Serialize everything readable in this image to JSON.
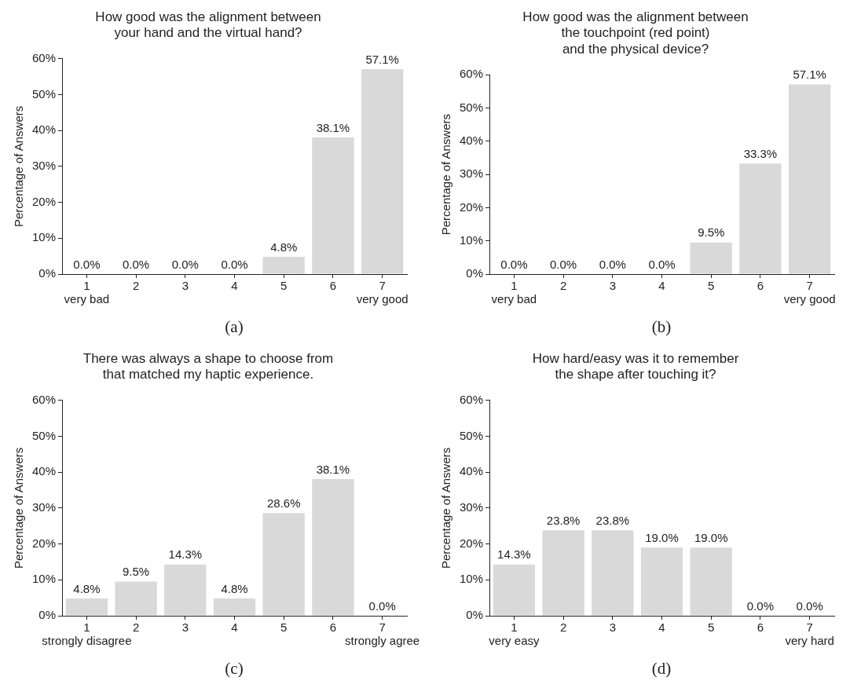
{
  "chart_data": [
    {
      "type": "bar",
      "title": "How good was the alignment between\nyour hand and the virtual hand?",
      "ylabel": "Percentage of Answers",
      "categories": [
        "1",
        "2",
        "3",
        "4",
        "5",
        "6",
        "7"
      ],
      "values": [
        0,
        0,
        0,
        0,
        4.8,
        38.1,
        57.1
      ],
      "value_labels": [
        "0.0%",
        "0.0%",
        "0.0%",
        "0.0%",
        "4.8%",
        "38.1%",
        "57.1%"
      ],
      "color": "#d9d9d9",
      "ylim": [
        0,
        60
      ],
      "yticks": [
        {
          "value": 0,
          "label": "0%"
        },
        {
          "value": 10,
          "label": "10%"
        },
        {
          "value": 20,
          "label": "20%"
        },
        {
          "value": 30,
          "label": "30%"
        },
        {
          "value": 40,
          "label": "40%"
        },
        {
          "value": 50,
          "label": "50%"
        },
        {
          "value": 60,
          "label": "60%"
        }
      ],
      "annotations": [
        "very bad",
        "very good",
        "(a)"
      ]
    },
    {
      "type": "bar",
      "title": "How good was the alignment between\nthe touchpoint (red point)\nand the physical device?",
      "ylabel": "Percentage of Answers",
      "categories": [
        "1",
        "2",
        "3",
        "4",
        "5",
        "6",
        "7"
      ],
      "values": [
        0,
        0,
        0,
        0,
        9.5,
        33.3,
        57.1
      ],
      "value_labels": [
        "0.0%",
        "0.0%",
        "0.0%",
        "0.0%",
        "9.5%",
        "33.3%",
        "57.1%"
      ],
      "color": "#d9d9d9",
      "ylim": [
        0,
        60
      ],
      "yticks": [
        {
          "value": 0,
          "label": "0%"
        },
        {
          "value": 10,
          "label": "10%"
        },
        {
          "value": 20,
          "label": "20%"
        },
        {
          "value": 30,
          "label": "30%"
        },
        {
          "value": 40,
          "label": "40%"
        },
        {
          "value": 50,
          "label": "50%"
        },
        {
          "value": 60,
          "label": "60%"
        }
      ],
      "annotations": [
        "very bad",
        "very good",
        "(b)"
      ]
    },
    {
      "type": "bar",
      "title": "There was always a shape to choose from\nthat matched my haptic experience.",
      "ylabel": "Percentage of Answers",
      "categories": [
        "1",
        "2",
        "3",
        "4",
        "5",
        "6",
        "7"
      ],
      "values": [
        4.8,
        9.5,
        14.3,
        4.8,
        28.6,
        38.1,
        0
      ],
      "value_labels": [
        "4.8%",
        "9.5%",
        "14.3%",
        "4.8%",
        "28.6%",
        "38.1%",
        "0.0%"
      ],
      "color": "#d9d9d9",
      "ylim": [
        0,
        60
      ],
      "yticks": [
        {
          "value": 0,
          "label": "0%"
        },
        {
          "value": 10,
          "label": "10%"
        },
        {
          "value": 20,
          "label": "20%"
        },
        {
          "value": 30,
          "label": "30%"
        },
        {
          "value": 40,
          "label": "40%"
        },
        {
          "value": 50,
          "label": "50%"
        },
        {
          "value": 60,
          "label": "60%"
        }
      ],
      "annotations": [
        "strongly disagree",
        "strongly agree",
        "(c)"
      ]
    },
    {
      "type": "bar",
      "title": "How hard/easy was it to remember\nthe shape after touching it?",
      "ylabel": "Percentage of Answers",
      "categories": [
        "1",
        "2",
        "3",
        "4",
        "5",
        "6",
        "7"
      ],
      "values": [
        14.3,
        23.8,
        23.8,
        19.0,
        19.0,
        0,
        0
      ],
      "value_labels": [
        "14.3%",
        "23.8%",
        "23.8%",
        "19.0%",
        "19.0%",
        "0.0%",
        "0.0%"
      ],
      "color": "#d9d9d9",
      "ylim": [
        0,
        60
      ],
      "yticks": [
        {
          "value": 0,
          "label": "0%"
        },
        {
          "value": 10,
          "label": "10%"
        },
        {
          "value": 20,
          "label": "20%"
        },
        {
          "value": 30,
          "label": "30%"
        },
        {
          "value": 40,
          "label": "40%"
        },
        {
          "value": 50,
          "label": "50%"
        },
        {
          "value": 60,
          "label": "60%"
        }
      ],
      "annotations": [
        "very easy",
        "very hard",
        "(d)"
      ]
    }
  ]
}
